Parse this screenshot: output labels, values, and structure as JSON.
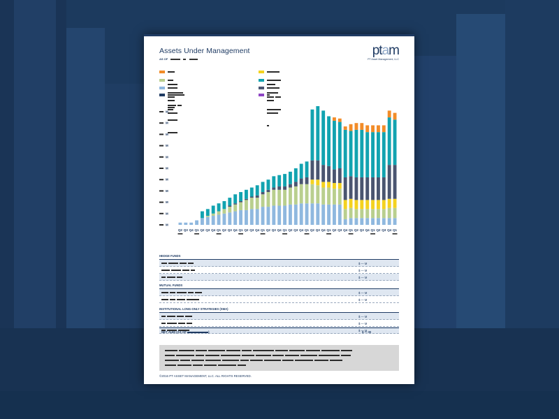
{
  "document": {
    "title": "Assets Under Management",
    "as_of_label": "AS OF",
    "logo_text_p": "pt",
    "logo_text_a": "a",
    "logo_text_m": "m",
    "logo_subtitle": "PT Asset Management, LLC",
    "footer": "©2016 PT ASSET MANAGEMENT, LLC. ALL RIGHTS RESERVED."
  },
  "legend": [
    {
      "color": "#f28c28"
    },
    {
      "color": "#f4d21f"
    },
    {
      "color": "#b9cf8e"
    },
    {
      "color": "#12a3b0"
    },
    {
      "color": "#8fb8df"
    },
    {
      "color": "#4a5570"
    },
    {
      "color": "#1f3b63"
    },
    {
      "color": "#8e44c4"
    }
  ],
  "chart_data": {
    "type": "bar",
    "stacked": true,
    "title": "",
    "ylabel": "",
    "y_tick_labels": [
      "M",
      "M",
      "M",
      "M",
      "M",
      "M",
      "M",
      "M",
      "M",
      "M",
      "M"
    ],
    "ylim": [
      0,
      100
    ],
    "categories": [
      "Q2",
      "Q3",
      "Q4",
      "Q1",
      "Q2",
      "Q3",
      "Q4",
      "Q1",
      "Q2",
      "Q3",
      "Q4",
      "Q1",
      "Q2",
      "Q3",
      "Q4",
      "Q1",
      "Q2",
      "Q3",
      "Q4",
      "Q1",
      "Q2",
      "Q3",
      "Q4",
      "Q1",
      "Q2",
      "Q3",
      "Q4",
      "Q1",
      "Q2",
      "Q3",
      "Q4",
      "Q1",
      "Q2",
      "Q3",
      "Q4",
      "Q1",
      "Q2",
      "Q3",
      "Q4",
      "Q1"
    ],
    "series": [
      {
        "name": "light-blue",
        "color": "#8fb8df",
        "values": [
          2,
          2,
          2,
          4,
          6,
          7,
          8,
          9,
          10,
          11,
          12,
          13,
          13,
          14,
          14,
          16,
          16,
          17,
          17,
          17,
          18,
          18,
          19,
          19,
          19,
          19,
          18,
          18,
          18,
          18,
          5,
          6,
          6,
          6,
          6,
          6,
          6,
          6,
          6,
          6
        ]
      },
      {
        "name": "sage",
        "color": "#b9cf8e",
        "values": [
          0,
          0,
          0,
          0,
          0,
          1,
          2,
          3,
          4,
          5,
          6,
          7,
          9,
          10,
          10,
          11,
          13,
          14,
          14,
          14,
          15,
          16,
          17,
          17,
          17,
          16,
          15,
          15,
          14,
          14,
          9,
          9,
          8,
          8,
          8,
          8,
          8,
          8,
          9,
          9
        ]
      },
      {
        "name": "yellow",
        "color": "#f4d21f",
        "values": [
          0,
          0,
          0,
          0,
          0,
          0,
          0,
          0,
          0,
          0,
          0,
          0,
          0,
          0,
          0,
          0,
          0,
          0,
          0,
          0,
          0,
          0,
          0,
          0,
          4,
          5,
          5,
          5,
          5,
          5,
          8,
          8,
          8,
          8,
          8,
          8,
          8,
          8,
          8,
          8
        ]
      },
      {
        "name": "slate",
        "color": "#4a5570",
        "values": [
          0,
          0,
          0,
          0,
          0,
          0,
          0,
          0,
          0,
          1,
          1,
          1,
          1,
          1,
          2,
          2,
          2,
          2,
          3,
          3,
          3,
          4,
          5,
          6,
          17,
          17,
          15,
          14,
          12,
          13,
          20,
          20,
          20,
          20,
          20,
          20,
          20,
          20,
          30,
          30
        ]
      },
      {
        "name": "teal",
        "color": "#12a3b0",
        "values": [
          0,
          0,
          0,
          0,
          6,
          6,
          7,
          7,
          7,
          7,
          8,
          8,
          8,
          8,
          9,
          9,
          9,
          10,
          10,
          11,
          11,
          12,
          13,
          14,
          45,
          48,
          48,
          44,
          43,
          41,
          42,
          40,
          42,
          42,
          40,
          40,
          40,
          40,
          42,
          40
        ]
      },
      {
        "name": "orange",
        "color": "#f28c28",
        "values": [
          0,
          0,
          0,
          0,
          0,
          0,
          0,
          0,
          0,
          0,
          0,
          0,
          0,
          0,
          0,
          0,
          0,
          0,
          0,
          0,
          0,
          0,
          0,
          0,
          0,
          0,
          0,
          0,
          0,
          0,
          0,
          0,
          0,
          0,
          0,
          0,
          0,
          0,
          0,
          0
        ]
      }
    ],
    "top_up_orange": [
      0,
      0,
      0,
      0,
      0,
      0,
      0,
      0,
      0,
      0,
      0,
      0,
      0,
      0,
      0,
      0,
      0,
      0,
      0,
      0,
      0,
      0,
      0,
      0,
      0,
      0,
      0,
      0,
      3,
      3,
      3,
      6,
      6,
      6,
      6,
      6,
      6,
      6,
      6,
      6
    ],
    "grid": false,
    "legend_position": "top"
  },
  "table": {
    "sections": [
      {
        "heading": "HEDGE FUNDS",
        "rows": [
          {
            "value": "$ — M"
          },
          {
            "value": "$ — M"
          },
          {
            "value": "$ — M"
          }
        ]
      },
      {
        "heading": "MUTUAL FUNDS",
        "rows": [
          {
            "value": "$ — M"
          },
          {
            "value": "$ — M"
          }
        ]
      },
      {
        "heading": "INSTITUTIONAL LONG-ONLY STRATEGIES (SMA)",
        "rows": [
          {
            "value": "$ — M"
          },
          {
            "value": "$ — M"
          },
          {
            "value": "$ — M"
          }
        ]
      }
    ],
    "net_label": "NET AUM (AS OF",
    "net_value": "$ — M"
  }
}
